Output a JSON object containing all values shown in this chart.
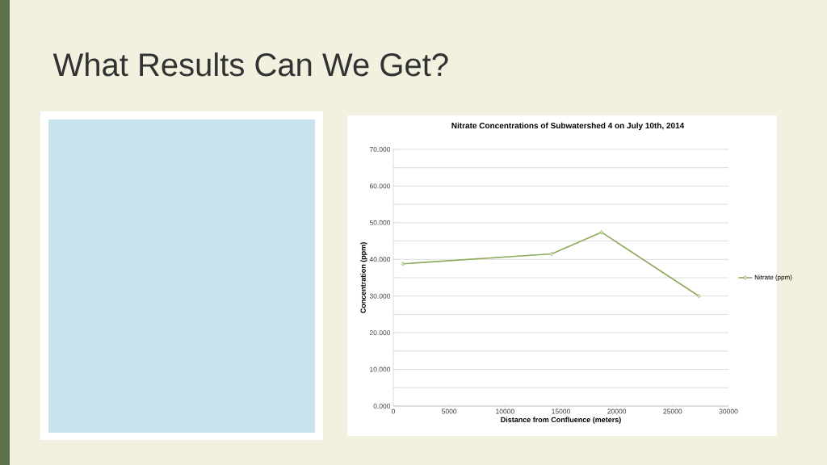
{
  "chart_data": {
    "type": "line",
    "title": "What Results Can We Get?",
    "subtitle": "Nitrate Concentrations of Subwatershed 4 on July 10th, 2014",
    "xlabel": "Distance from Confluence (meters)",
    "ylabel": "Concentration (ppm)",
    "series": [
      {
        "name": "Nitrate (ppm)",
        "color": "#8faa5a",
        "x": [
          860,
          14170,
          18630,
          27350
        ],
        "values": [
          38.8,
          41.5,
          47.4,
          30.0
        ]
      }
    ],
    "xlim": [
      0,
      30000
    ],
    "xticks": [
      0,
      5000,
      10000,
      15000,
      20000,
      25000,
      30000
    ],
    "ylim": [
      0,
      70
    ],
    "yticks": [
      {
        "value": 0,
        "label": "0.000"
      },
      {
        "value": 5,
        "label": null
      },
      {
        "value": 10,
        "label": "10.000"
      },
      {
        "value": 15,
        "label": null
      },
      {
        "value": 20,
        "label": "20.000"
      },
      {
        "value": 25,
        "label": null
      },
      {
        "value": 30,
        "label": "30.000"
      },
      {
        "value": 35,
        "label": null
      },
      {
        "value": 40,
        "label": "40.000"
      },
      {
        "value": 45,
        "label": null
      },
      {
        "value": 50,
        "label": "50.000"
      },
      {
        "value": 55,
        "label": null
      },
      {
        "value": 60,
        "label": "60.000"
      },
      {
        "value": 65,
        "label": null
      },
      {
        "value": 70,
        "label": "70.000"
      }
    ],
    "grid": "y",
    "legend": "right",
    "marker": "diamond",
    "line_style": "solid"
  }
}
